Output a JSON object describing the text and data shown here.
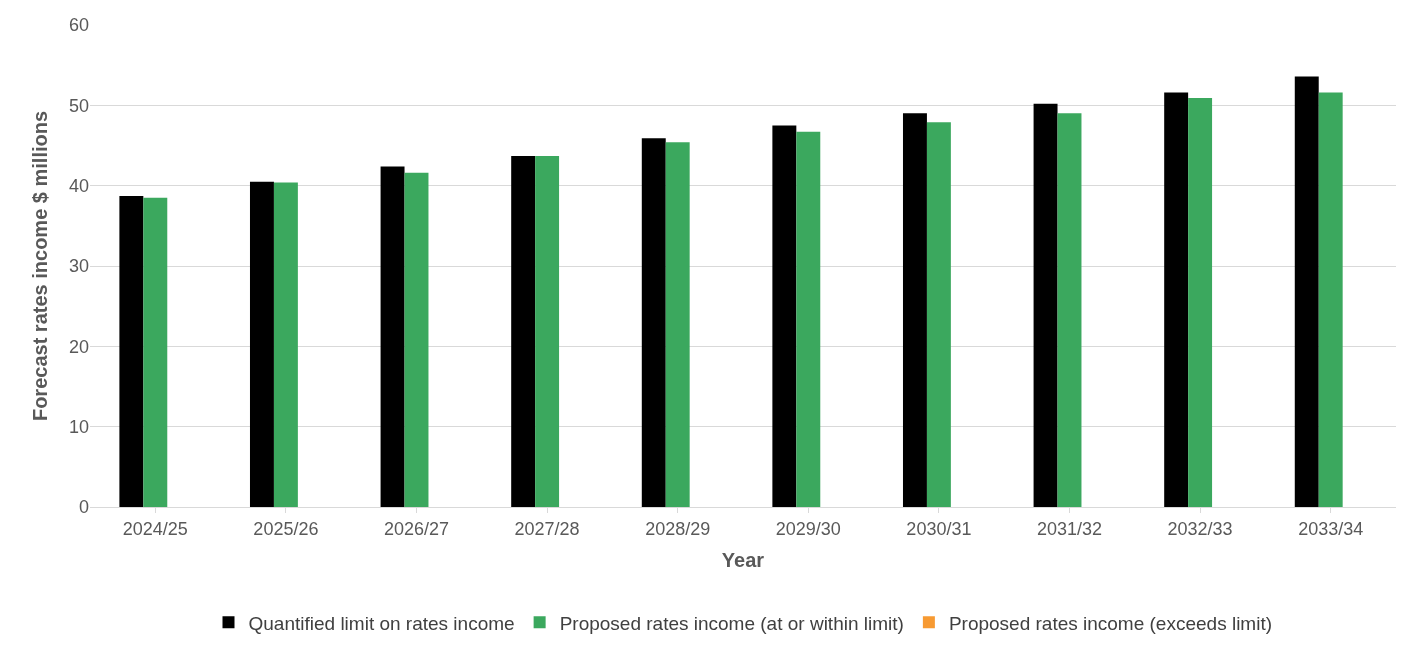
{
  "chart_data": {
    "type": "bar",
    "xlabel": "Year",
    "ylabel": "Forecast rates income $ millions",
    "categories": [
      "2024/25",
      "2025/26",
      "2026/27",
      "2027/28",
      "2028/29",
      "2029/30",
      "2030/31",
      "2031/32",
      "2032/33",
      "2033/34"
    ],
    "series": [
      {
        "name": "Quantified limit on rates income",
        "color": "#000000",
        "values": [
          38.7,
          40.5,
          42.4,
          43.7,
          45.9,
          47.5,
          49.0,
          50.2,
          51.6,
          53.6
        ]
      },
      {
        "name": "Proposed rates income (at or within limit)",
        "color": "#3ba85e",
        "values": [
          38.5,
          40.4,
          41.6,
          43.7,
          45.4,
          46.7,
          47.9,
          49.0,
          50.9,
          51.6
        ]
      },
      {
        "name": "Proposed rates income (exceeds limit)",
        "color": "#f79a32",
        "values": [
          null,
          null,
          null,
          null,
          null,
          null,
          null,
          null,
          null,
          null
        ]
      }
    ],
    "ylim": [
      0,
      60
    ],
    "yticks": [
      0,
      10,
      20,
      30,
      40,
      50,
      60
    ],
    "grid": "y",
    "legend": "bottom"
  }
}
